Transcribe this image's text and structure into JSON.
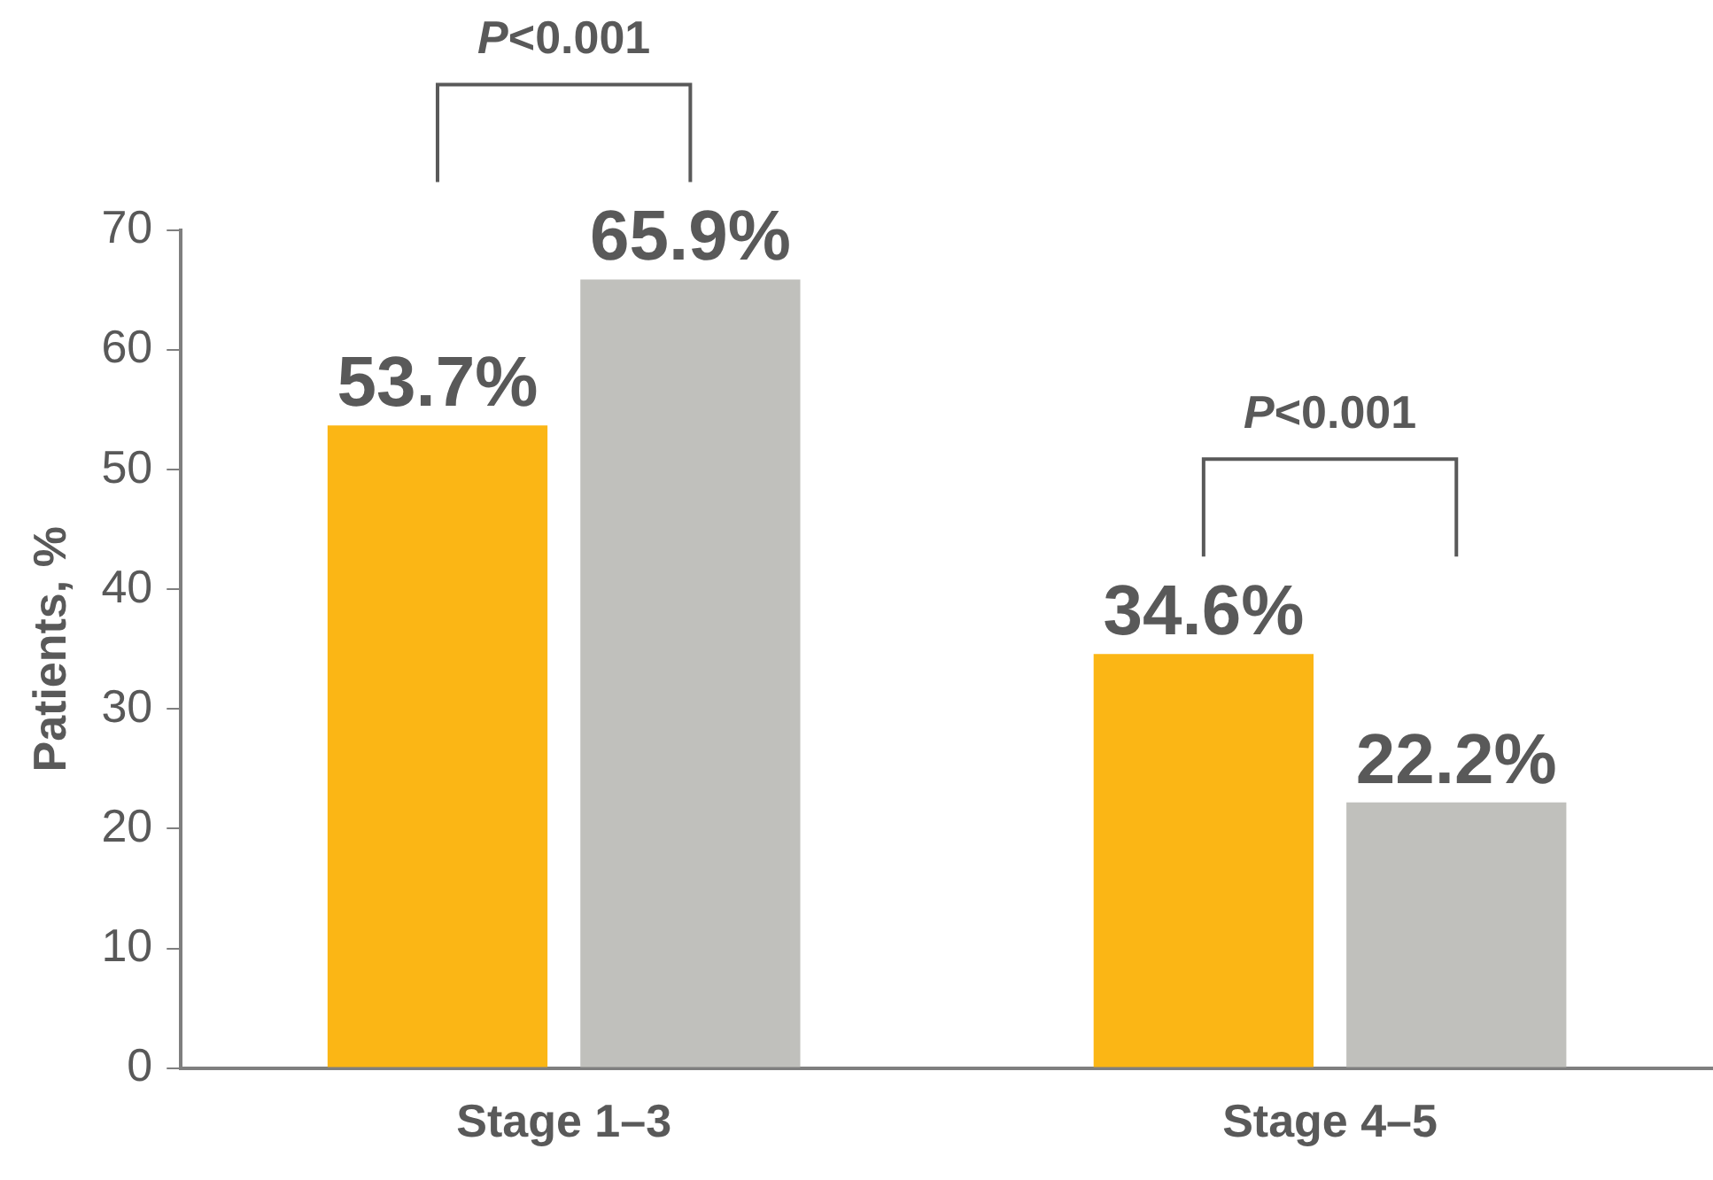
{
  "chart_data": {
    "type": "bar",
    "ylabel": "Patients, %",
    "categories": [
      "Stage 1–3",
      "Stage 4–5"
    ],
    "series": [
      {
        "color": "#fbb615",
        "values": [
          53.7,
          34.6
        ],
        "value_labels": [
          "53.7%",
          "34.6%"
        ]
      },
      {
        "color": "#c0c0bc",
        "values": [
          65.9,
          22.2
        ],
        "value_labels": [
          "65.9%",
          "22.2%"
        ]
      }
    ],
    "ylim": [
      0,
      70
    ],
    "yticks": [
      0,
      10,
      20,
      30,
      40,
      50,
      60,
      70
    ],
    "grid": false,
    "legend": false,
    "annotations": [
      "P<0.001",
      "P<0.001"
    ]
  }
}
